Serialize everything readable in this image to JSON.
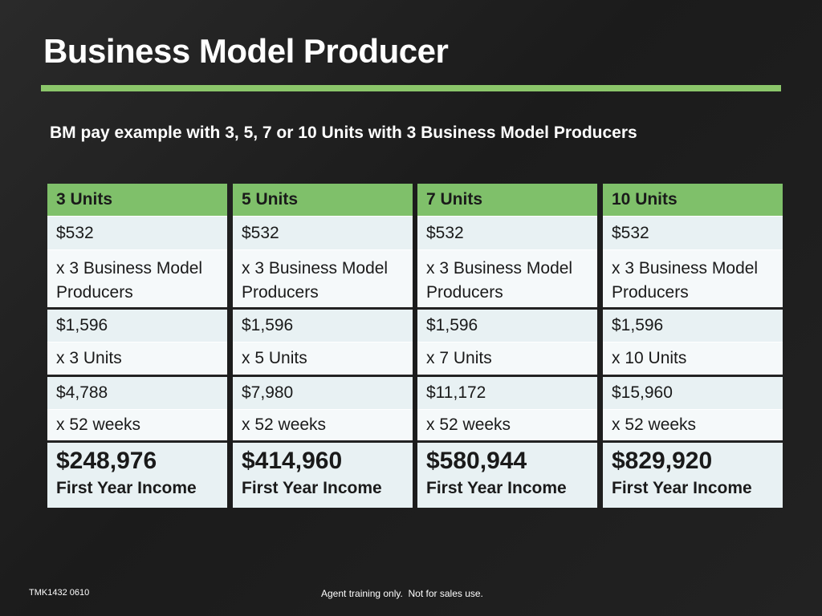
{
  "title": "Business Model Producer",
  "subtitle": "BM pay example with 3, 5, 7 or 10 Units with 3 Business Model Producers",
  "colors": {
    "accent_green": "#8bc66a",
    "header_green": "#7fc06a",
    "background": "#1f1f1f"
  },
  "columns": [
    {
      "header": "3 Units",
      "base_pay": "$532",
      "producers": "x 3 Business Model Producers",
      "subtotal": "$1,596",
      "units": "x 3 Units",
      "weekly": "$4,788",
      "weeks": "x 52 weeks",
      "total": "$248,976",
      "total_label": "First Year Income"
    },
    {
      "header": "5 Units",
      "base_pay": "$532",
      "producers": "x 3 Business Model Producers",
      "subtotal": "$1,596",
      "units": "x 5 Units",
      "weekly": "$7,980",
      "weeks": "x 52 weeks",
      "total": "$414,960",
      "total_label": "First Year Income"
    },
    {
      "header": "7 Units",
      "base_pay": "$532",
      "producers": "x 3 Business Model Producers",
      "subtotal": "$1,596",
      "units": "x 7 Units",
      "weekly": "$11,172",
      "weeks": "x 52 weeks",
      "total": "$580,944",
      "total_label": "First Year Income"
    },
    {
      "header": "10 Units",
      "base_pay": "$532",
      "producers": "x 3 Business Model Producers",
      "subtotal": "$1,596",
      "units": "x 10 Units",
      "weekly": "$15,960",
      "weeks": "x 52 weeks",
      "total": "$829,920",
      "total_label": "First Year Income"
    }
  ],
  "footer": {
    "code": "TMK1432 0610",
    "note": "Agent training only.  Not for sales use."
  }
}
